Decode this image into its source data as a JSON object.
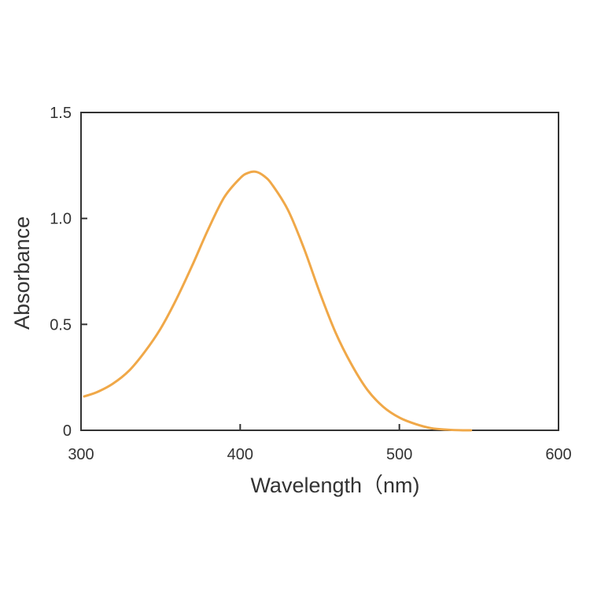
{
  "chart_data": {
    "type": "line",
    "xlabel": "Wavelength（nm)",
    "ylabel": "Absorbance",
    "xlim": [
      300,
      600
    ],
    "ylim": [
      0,
      1.5
    ],
    "grid": false,
    "x_ticks": [
      {
        "value": 300,
        "label": "300"
      },
      {
        "value": 400,
        "label": "400"
      },
      {
        "value": 500,
        "label": "500"
      },
      {
        "value": 600,
        "label": "600"
      }
    ],
    "y_ticks": [
      {
        "value": 0,
        "label": "0"
      },
      {
        "value": 0.5,
        "label": "0.5"
      },
      {
        "value": 1.0,
        "label": "1.0"
      },
      {
        "value": 1.5,
        "label": "1.5"
      }
    ],
    "series": [
      {
        "color": "#f0a848",
        "x": [
          302,
          310,
          320,
          330,
          340,
          350,
          360,
          370,
          380,
          390,
          400,
          405,
          410,
          415,
          420,
          430,
          440,
          450,
          460,
          470,
          480,
          490,
          500,
          510,
          520,
          530,
          540,
          545
        ],
        "y": [
          0.16,
          0.18,
          0.22,
          0.28,
          0.37,
          0.48,
          0.62,
          0.78,
          0.95,
          1.1,
          1.19,
          1.215,
          1.22,
          1.2,
          1.16,
          1.04,
          0.86,
          0.65,
          0.46,
          0.31,
          0.19,
          0.11,
          0.06,
          0.03,
          0.01,
          0.003,
          0.0,
          0.0
        ]
      }
    ]
  }
}
